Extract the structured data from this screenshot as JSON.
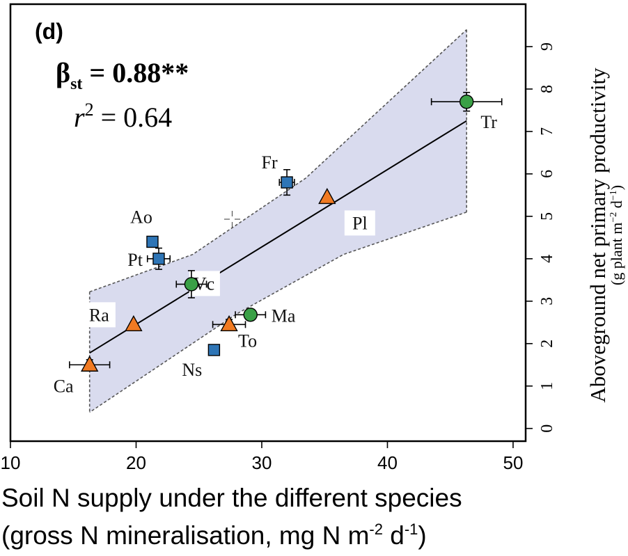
{
  "panel_label": "(d)",
  "stats": {
    "beta_symbol": "β",
    "beta_subscript": "st",
    "beta_value": " = 0.88**",
    "r2_symbol": "r",
    "r2_exponent": "2",
    "r2_value": " = 0.64"
  },
  "xlabel": {
    "line1": "Soil N supply under the different species",
    "line2_pre": "(gross N mineralisation, mg N m",
    "line2_sup1": "-2",
    "line2_mid": " d",
    "line2_sup2": "-1",
    "line2_post": ")"
  },
  "ylabel": {
    "main": "Aboveground net primary productivity",
    "unit_pre": "(g plant m",
    "unit_sup1": "−2",
    "unit_mid": " d",
    "unit_sup2": "−1",
    "unit_post": ")"
  },
  "chart_data": {
    "type": "scatter",
    "xlim": [
      10,
      51
    ],
    "ylim": [
      -0.3,
      10
    ],
    "xticks": [
      10,
      20,
      30,
      40,
      50
    ],
    "yticks": [
      0,
      1,
      2,
      3,
      4,
      5,
      6,
      7,
      8,
      9
    ],
    "y_axis_position": "right",
    "grid": false,
    "colors": {
      "square": "#2e75b6",
      "circle": "#3aa046",
      "triangle": "#f07a22",
      "band": "#d9dbee",
      "line": "#000000"
    },
    "regression_line": {
      "x": [
        16.3,
        46.3
      ],
      "y": [
        1.78,
        7.25
      ]
    },
    "confidence_band": {
      "upper": [
        [
          16.3,
          3.22
        ],
        [
          24.5,
          4.1
        ],
        [
          33.5,
          5.9
        ],
        [
          46.3,
          9.4
        ]
      ],
      "lower": [
        [
          46.3,
          5.1
        ],
        [
          36.5,
          4.1
        ],
        [
          28.0,
          2.7
        ],
        [
          16.3,
          0.38
        ]
      ]
    },
    "points": [
      {
        "label": "Tr",
        "x": 46.3,
        "y": 7.7,
        "marker": "circle",
        "xerr": 2.8,
        "yerr": 0.22
      },
      {
        "label": "Fr",
        "x": 32.0,
        "y": 5.8,
        "marker": "square",
        "xerr": 0.6,
        "yerr": 0.3
      },
      {
        "label": "Pl",
        "x": 35.2,
        "y": 5.45,
        "marker": "triangle",
        "xerr": 0,
        "yerr": 0
      },
      {
        "label": "Ao",
        "x": 21.3,
        "y": 4.4,
        "marker": "square",
        "xerr": 0,
        "yerr": 0
      },
      {
        "label": "Pt",
        "x": 21.8,
        "y": 4.0,
        "marker": "square",
        "xerr": 0.9,
        "yerr": 0.25
      },
      {
        "label": "Vc",
        "x": 24.4,
        "y": 3.4,
        "marker": "circle",
        "xerr": 1.2,
        "yerr": 0.32
      },
      {
        "label": "Ma",
        "x": 29.1,
        "y": 2.68,
        "marker": "circle",
        "xerr": 1.2,
        "yerr": 0.1
      },
      {
        "label": "To",
        "x": 27.4,
        "y": 2.45,
        "marker": "triangle",
        "xerr": 1.3,
        "yerr": 0.12
      },
      {
        "label": "Ra",
        "x": 19.8,
        "y": 2.45,
        "marker": "triangle",
        "xerr": 0,
        "yerr": 0
      },
      {
        "label": "Ns",
        "x": 26.2,
        "y": 1.85,
        "marker": "square",
        "xerr": 0,
        "yerr": 0
      },
      {
        "label": "Ca",
        "x": 16.3,
        "y": 1.5,
        "marker": "triangle",
        "xerr": 1.6,
        "yerr": 0.12
      }
    ]
  }
}
